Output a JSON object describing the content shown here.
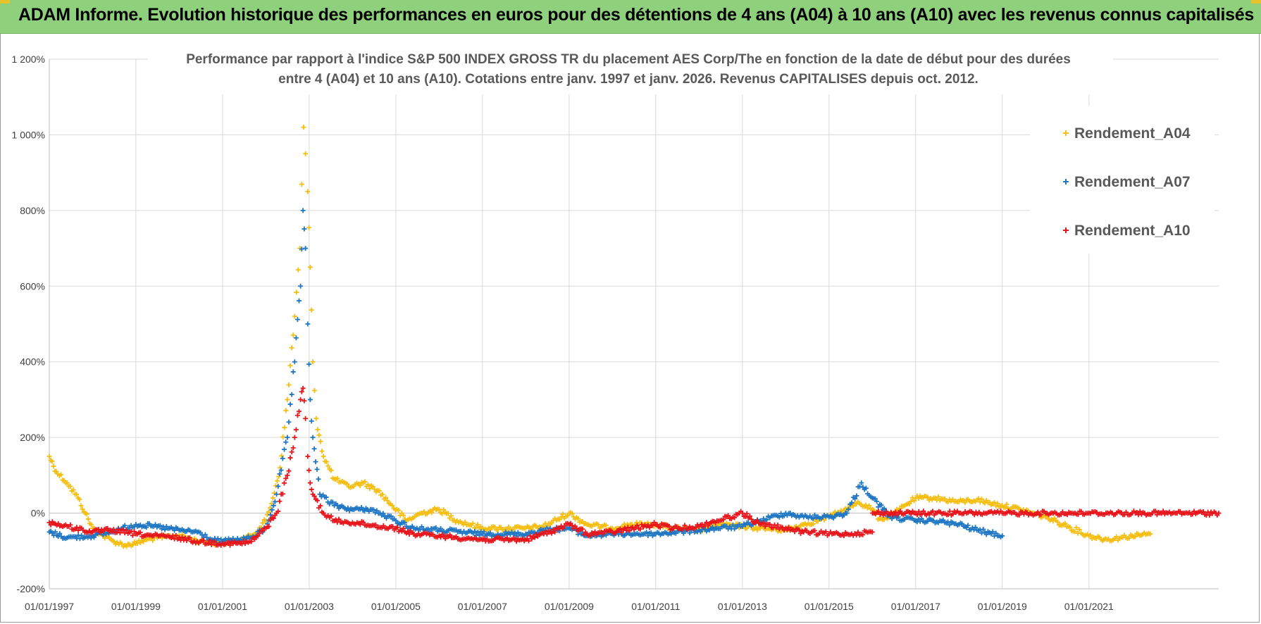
{
  "header": {
    "title": "ADAM Informe. Evolution historique des performances en euros pour des détentions de 4 ans (A04) à 10 ans (A10) avec les revenus connus capitalisés"
  },
  "colors": {
    "header_bg": "#8fd07d",
    "series_a04": "#f5be12",
    "series_a07": "#1f77c4",
    "series_a10": "#e8141b",
    "grid": "#d9d9d9"
  },
  "chart_data": {
    "type": "scatter",
    "title_lines": [
      "Performance par rapport à l'indice S&P 500 INDEX GROSS TR  du placement AES Corp/The en fonction de la date de début pour des durées",
      "entre 4 (A04) et 10 ans (A10). Cotations entre janv. 1997 et janv. 2026. Revenus CAPITALISES depuis oct. 2012."
    ],
    "xlabel": "",
    "ylabel": "",
    "ylim": [
      -200,
      1200
    ],
    "y_ticks": [
      -200,
      0,
      200,
      400,
      600,
      800,
      1000,
      1200
    ],
    "y_tick_labels": [
      "-200%",
      "0%",
      "200%",
      "400%",
      "600%",
      "800%",
      "1 000%",
      "1 200%"
    ],
    "x_range": [
      "1997-01-01",
      "2023-12-31"
    ],
    "x_ticks": [
      "1997-01-01",
      "1999-01-01",
      "2001-01-01",
      "2003-01-01",
      "2005-01-01",
      "2007-01-01",
      "2009-01-01",
      "2011-01-01",
      "2013-01-01",
      "2015-01-01",
      "2017-01-01",
      "2019-01-01",
      "2021-01-01"
    ],
    "x_tick_labels": [
      "01/01/1997",
      "01/01/1999",
      "01/01/2001",
      "01/01/2003",
      "01/01/2005",
      "01/01/2007",
      "01/01/2009",
      "01/01/2011",
      "01/01/2013",
      "01/01/2015",
      "01/01/2017",
      "01/01/2019",
      "01/01/2021"
    ],
    "grid": true,
    "legend_position": "top-right",
    "marker": "+",
    "series": [
      {
        "name": "Rendement_A04",
        "color": "#f5be12",
        "points": [
          [
            "1997-01-01",
            150
          ],
          [
            "1997-03-01",
            110
          ],
          [
            "1997-06-01",
            80
          ],
          [
            "1997-09-01",
            40
          ],
          [
            "1997-11-01",
            0
          ],
          [
            "1998-01-01",
            -40
          ],
          [
            "1998-04-01",
            -60
          ],
          [
            "1998-07-01",
            -75
          ],
          [
            "1998-10-01",
            -85
          ],
          [
            "1999-01-01",
            -80
          ],
          [
            "1999-04-01",
            -70
          ],
          [
            "1999-07-01",
            -65
          ],
          [
            "2000-01-01",
            -60
          ],
          [
            "2000-07-01",
            -75
          ],
          [
            "2001-01-01",
            -80
          ],
          [
            "2001-06-01",
            -72
          ],
          [
            "2001-09-01",
            -60
          ],
          [
            "2002-01-01",
            -20
          ],
          [
            "2002-03-01",
            40
          ],
          [
            "2002-05-01",
            120
          ],
          [
            "2002-07-01",
            300
          ],
          [
            "2002-09-01",
            520
          ],
          [
            "2002-10-15",
            700
          ],
          [
            "2002-11-15",
            1020
          ],
          [
            "2002-12-01",
            950
          ],
          [
            "2002-12-20",
            850
          ],
          [
            "2003-01-10",
            650
          ],
          [
            "2003-02-01",
            400
          ],
          [
            "2003-03-01",
            250
          ],
          [
            "2003-05-01",
            150
          ],
          [
            "2003-08-01",
            90
          ],
          [
            "2003-12-01",
            70
          ],
          [
            "2004-04-01",
            80
          ],
          [
            "2004-08-01",
            60
          ],
          [
            "2004-12-01",
            20
          ],
          [
            "2005-04-01",
            -20
          ],
          [
            "2005-08-01",
            0
          ],
          [
            "2006-01-01",
            10
          ],
          [
            "2006-06-01",
            -20
          ],
          [
            "2007-01-01",
            -40
          ],
          [
            "2008-01-01",
            -40
          ],
          [
            "2008-06-01",
            -35
          ],
          [
            "2009-01-01",
            0
          ],
          [
            "2009-06-01",
            -30
          ],
          [
            "2010-01-01",
            -40
          ],
          [
            "2010-06-01",
            -30
          ],
          [
            "2011-01-01",
            -30
          ],
          [
            "2011-06-01",
            -40
          ],
          [
            "2012-01-01",
            -45
          ],
          [
            "2012-06-01",
            -30
          ],
          [
            "2013-01-01",
            -35
          ],
          [
            "2013-06-01",
            -40
          ],
          [
            "2014-01-01",
            -45
          ],
          [
            "2014-06-01",
            -30
          ],
          [
            "2015-01-01",
            -10
          ],
          [
            "2015-06-01",
            10
          ],
          [
            "2015-09-01",
            30
          ],
          [
            "2016-01-01",
            10
          ],
          [
            "2016-03-01",
            -15
          ],
          [
            "2016-06-01",
            -10
          ],
          [
            "2016-10-01",
            20
          ],
          [
            "2017-01-01",
            40
          ],
          [
            "2017-06-01",
            40
          ],
          [
            "2018-01-01",
            30
          ],
          [
            "2018-06-01",
            35
          ],
          [
            "2019-01-01",
            20
          ],
          [
            "2019-06-01",
            10
          ],
          [
            "2020-01-01",
            -10
          ],
          [
            "2020-06-01",
            -30
          ],
          [
            "2021-01-01",
            -60
          ],
          [
            "2021-06-01",
            -70
          ],
          [
            "2022-01-01",
            -60
          ],
          [
            "2022-06-01",
            -55
          ]
        ]
      },
      {
        "name": "Rendement_A07",
        "color": "#1f77c4",
        "points": [
          [
            "1997-01-01",
            -50
          ],
          [
            "1997-06-01",
            -65
          ],
          [
            "1998-01-01",
            -60
          ],
          [
            "1998-06-01",
            -50
          ],
          [
            "1999-01-01",
            -30
          ],
          [
            "1999-06-01",
            -35
          ],
          [
            "2000-01-01",
            -45
          ],
          [
            "2000-06-01",
            -50
          ],
          [
            "2000-10-01",
            -70
          ],
          [
            "2001-01-01",
            -75
          ],
          [
            "2001-06-01",
            -70
          ],
          [
            "2001-09-01",
            -65
          ],
          [
            "2002-01-01",
            -40
          ],
          [
            "2002-04-01",
            50
          ],
          [
            "2002-07-01",
            200
          ],
          [
            "2002-09-01",
            400
          ],
          [
            "2002-10-20",
            600
          ],
          [
            "2002-11-10",
            800
          ],
          [
            "2002-12-01",
            700
          ],
          [
            "2002-12-20",
            500
          ],
          [
            "2003-01-10",
            300
          ],
          [
            "2003-02-01",
            200
          ],
          [
            "2003-04-01",
            50
          ],
          [
            "2003-08-01",
            20
          ],
          [
            "2004-01-01",
            10
          ],
          [
            "2004-06-01",
            10
          ],
          [
            "2005-01-01",
            -20
          ],
          [
            "2005-06-01",
            -40
          ],
          [
            "2006-01-01",
            -45
          ],
          [
            "2007-01-01",
            -55
          ],
          [
            "2008-01-01",
            -55
          ],
          [
            "2008-06-01",
            -45
          ],
          [
            "2009-01-01",
            -40
          ],
          [
            "2009-06-01",
            -60
          ],
          [
            "2010-01-01",
            -55
          ],
          [
            "2011-01-01",
            -55
          ],
          [
            "2012-01-01",
            -45
          ],
          [
            "2012-06-01",
            -40
          ],
          [
            "2013-01-01",
            -35
          ],
          [
            "2013-06-01",
            -20
          ],
          [
            "2014-01-01",
            0
          ],
          [
            "2014-06-01",
            -10
          ],
          [
            "2015-01-01",
            -10
          ],
          [
            "2015-06-01",
            0
          ],
          [
            "2015-10-01",
            80
          ],
          [
            "2016-01-01",
            40
          ],
          [
            "2016-06-01",
            -10
          ],
          [
            "2017-01-01",
            -20
          ],
          [
            "2017-06-01",
            -20
          ],
          [
            "2018-01-01",
            -30
          ],
          [
            "2018-06-01",
            -45
          ],
          [
            "2019-01-01",
            -60
          ]
        ]
      },
      {
        "name": "Rendement_A10",
        "color": "#e8141b",
        "points": [
          [
            "1997-01-01",
            -25
          ],
          [
            "1997-06-01",
            -35
          ],
          [
            "1998-01-01",
            -50
          ],
          [
            "1998-06-01",
            -45
          ],
          [
            "1999-01-01",
            -55
          ],
          [
            "1999-06-01",
            -60
          ],
          [
            "2000-01-01",
            -65
          ],
          [
            "2000-06-01",
            -75
          ],
          [
            "2001-01-01",
            -80
          ],
          [
            "2001-06-01",
            -80
          ],
          [
            "2001-09-01",
            -75
          ],
          [
            "2002-01-01",
            -40
          ],
          [
            "2002-04-01",
            0
          ],
          [
            "2002-07-01",
            100
          ],
          [
            "2002-09-01",
            200
          ],
          [
            "2002-10-20",
            300
          ],
          [
            "2002-11-10",
            330
          ],
          [
            "2002-12-01",
            250
          ],
          [
            "2002-12-20",
            150
          ],
          [
            "2003-01-10",
            80
          ],
          [
            "2003-02-01",
            50
          ],
          [
            "2003-05-01",
            0
          ],
          [
            "2003-08-01",
            -20
          ],
          [
            "2004-01-01",
            -25
          ],
          [
            "2005-01-01",
            -40
          ],
          [
            "2005-06-01",
            -55
          ],
          [
            "2006-01-01",
            -60
          ],
          [
            "2007-01-01",
            -70
          ],
          [
            "2008-01-01",
            -70
          ],
          [
            "2008-06-01",
            -55
          ],
          [
            "2009-01-01",
            -30
          ],
          [
            "2009-06-01",
            -55
          ],
          [
            "2010-01-01",
            -50
          ],
          [
            "2011-01-01",
            -30
          ],
          [
            "2011-06-01",
            -40
          ],
          [
            "2012-01-01",
            -35
          ],
          [
            "2012-06-01",
            -20
          ],
          [
            "2013-01-01",
            0
          ],
          [
            "2013-06-01",
            -30
          ],
          [
            "2014-01-01",
            -40
          ],
          [
            "2014-06-01",
            -50
          ],
          [
            "2015-01-01",
            -55
          ],
          [
            "2015-06-01",
            -55
          ],
          [
            "2016-01-01",
            -50
          ],
          [
            "2016-01-02",
            0
          ],
          [
            "2017-01-01",
            0
          ],
          [
            "2018-01-01",
            0
          ],
          [
            "2019-01-01",
            0
          ],
          [
            "2020-01-01",
            0
          ],
          [
            "2021-01-01",
            0
          ],
          [
            "2022-01-01",
            0
          ],
          [
            "2023-01-01",
            0
          ],
          [
            "2023-12-31",
            0
          ]
        ]
      }
    ]
  }
}
